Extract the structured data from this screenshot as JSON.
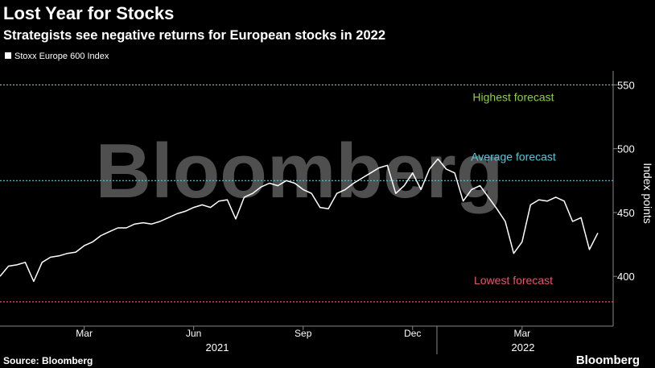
{
  "chart_data": {
    "type": "line",
    "title": "Lost Year for Stocks",
    "subtitle": "Strategists see negative returns for European stocks in 2022",
    "y_axis_label": "Index points",
    "source": "Source: Bloomberg",
    "brand": "Bloomberg",
    "watermark": "Bloomberg",
    "year_labels": [
      "2021",
      "2022"
    ],
    "categories": [
      null,
      null,
      null,
      null,
      null,
      null,
      null,
      null,
      null,
      null,
      "Mar",
      null,
      null,
      null,
      null,
      null,
      null,
      null,
      null,
      null,
      null,
      null,
      null,
      "Jun",
      null,
      null,
      null,
      null,
      null,
      null,
      null,
      null,
      null,
      null,
      null,
      null,
      "Sep",
      null,
      null,
      null,
      null,
      null,
      null,
      null,
      null,
      null,
      null,
      null,
      null,
      "Dec",
      null,
      null,
      null,
      null,
      null,
      null,
      null,
      null,
      null,
      null,
      null,
      null,
      "Mar",
      null,
      null,
      null,
      null,
      null,
      null,
      null,
      null,
      null
    ],
    "series": [
      {
        "name": "Stoxx Europe 600 Index",
        "color": "#ffffff",
        "values": [
          400,
          408,
          409,
          411,
          396,
          411,
          415,
          416,
          418,
          419,
          424,
          427,
          432,
          435,
          438,
          438,
          441,
          442,
          441,
          443,
          446,
          449,
          451,
          454,
          456,
          454,
          459,
          460,
          445,
          462,
          465,
          470,
          473,
          471,
          475,
          473,
          468,
          465,
          454,
          453,
          465,
          468,
          473,
          477,
          481,
          485,
          487,
          465,
          471,
          481,
          468,
          484,
          492,
          484,
          481,
          459,
          468,
          471,
          462,
          453,
          443,
          418,
          427,
          456,
          460,
          459,
          462,
          459,
          443,
          446,
          421,
          434
        ]
      }
    ],
    "forecasts": [
      {
        "label": "Highest forecast",
        "value": 550,
        "color": "#8fce4a"
      },
      {
        "label": "Average forecast",
        "value": 475,
        "color": "#5fc3d6"
      },
      {
        "label": "Lowest forecast",
        "value": 380,
        "color": "#e5566b"
      }
    ],
    "ylim": [
      361,
      561
    ],
    "yticks": [
      400,
      450,
      500,
      550
    ]
  }
}
